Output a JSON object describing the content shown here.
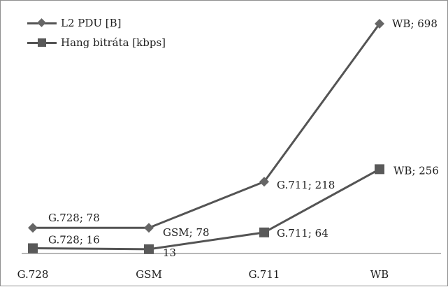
{
  "chart_data": {
    "type": "line",
    "categories": [
      "G.728",
      "GSM",
      "G.711",
      "WB"
    ],
    "series": [
      {
        "name": "L2 PDU [B]",
        "values": [
          78,
          78,
          218,
          698
        ],
        "labels": [
          "G.728; 78",
          "GSM; 78",
          "G.711; 218",
          "WB; 698"
        ],
        "marker": "diamond",
        "color": "#666666"
      },
      {
        "name": "Hang bitráta [kbps]",
        "values": [
          16,
          13,
          64,
          256
        ],
        "labels": [
          "G.728; 16",
          "13",
          "G.711; 64",
          "WB; 256"
        ],
        "marker": "square",
        "color": "#595959"
      }
    ],
    "title": "",
    "xlabel": "",
    "ylabel": "",
    "ylim": [
      0,
      750
    ],
    "grid": false,
    "legend": "top-left"
  }
}
